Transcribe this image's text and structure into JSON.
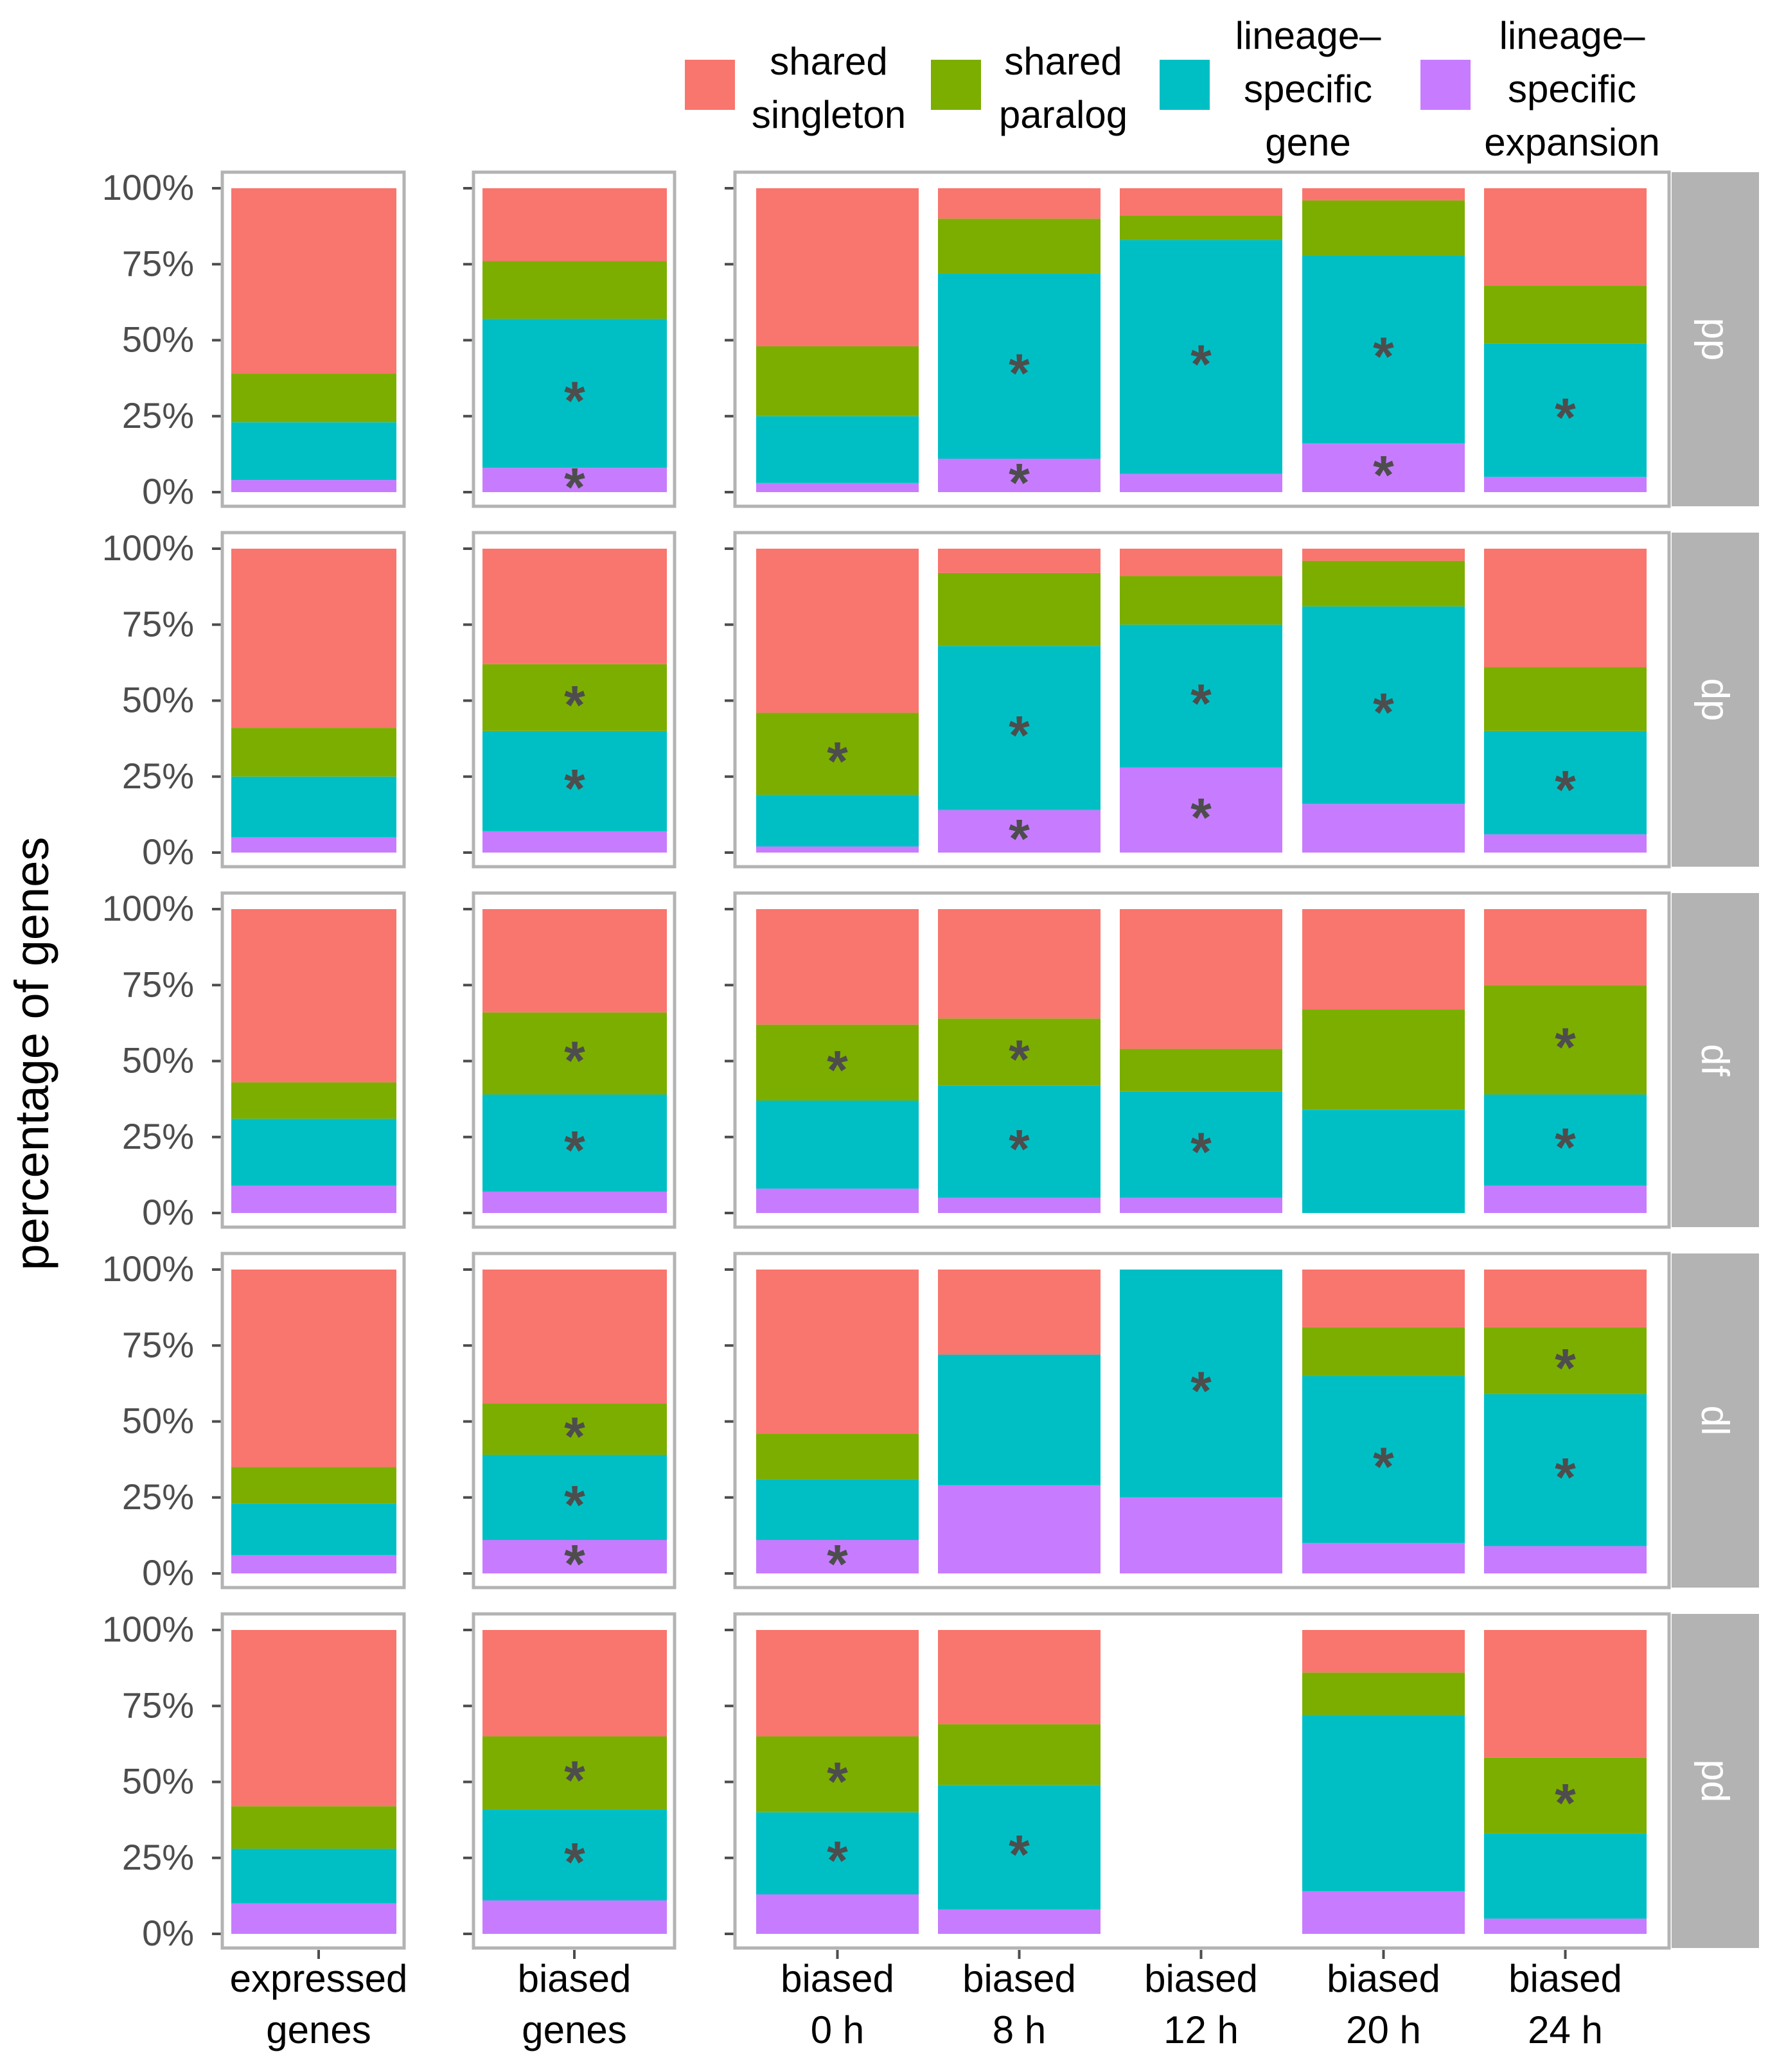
{
  "chart_data": {
    "type": "bar",
    "ylabel": "percentage of genes",
    "xlabel": "",
    "ylim": [
      0,
      100
    ],
    "y_ticks": [
      "0%",
      "25%",
      "50%",
      "75%",
      "100%"
    ],
    "stacking": "stacked-percent",
    "legend": {
      "placement": "top-right",
      "entries": [
        {
          "key": "shared_singleton",
          "lines": [
            "shared",
            "singleton"
          ]
        },
        {
          "key": "shared_paralog",
          "lines": [
            "shared",
            "paralog"
          ]
        },
        {
          "key": "lineage_specific_gene",
          "lines": [
            "lineage–",
            "specific",
            "gene"
          ]
        },
        {
          "key": "lineage_specific_expansion",
          "lines": [
            "lineage–",
            "specific",
            "expansion"
          ]
        }
      ]
    },
    "colors": {
      "shared_singleton": "#F8766D",
      "shared_paralog": "#7CAE00",
      "lineage_specific_gene": "#00BFC4",
      "lineage_specific_expansion": "#C77CFF",
      "strip": "#B3B3B3",
      "asterisk": "#4D4D4D",
      "panel_border": "#B3B3B3",
      "axis_text": "#4D4D4D"
    },
    "stack_order_bottom_to_top": [
      "lineage_specific_expansion",
      "lineage_specific_gene",
      "shared_paralog",
      "shared_singleton"
    ],
    "categories": [
      {
        "key": "expressed",
        "lines": [
          "expressed",
          "genes"
        ]
      },
      {
        "key": "biased",
        "lines": [
          "biased",
          "genes"
        ]
      },
      {
        "key": "b0",
        "lines": [
          "biased",
          "0 h"
        ]
      },
      {
        "key": "b8",
        "lines": [
          "biased",
          "8 h"
        ]
      },
      {
        "key": "b12",
        "lines": [
          "biased",
          "12 h"
        ]
      },
      {
        "key": "b20",
        "lines": [
          "biased",
          "20 h"
        ]
      },
      {
        "key": "b24",
        "lines": [
          "biased",
          "24 h"
        ]
      }
    ],
    "facets": [
      {
        "label": "pp",
        "bars": {
          "expressed": {
            "values": [
              4,
              19,
              16,
              61
            ],
            "stars": []
          },
          "biased": {
            "values": [
              8,
              49,
              19,
              24
            ],
            "stars": [
              "lineage_specific_expansion",
              "lineage_specific_gene"
            ]
          },
          "b0": {
            "values": [
              3,
              22,
              23,
              52
            ],
            "stars": []
          },
          "b8": {
            "values": [
              11,
              61,
              18,
              10
            ],
            "stars": [
              "lineage_specific_expansion",
              "lineage_specific_gene"
            ]
          },
          "b12": {
            "values": [
              6,
              77,
              8,
              9
            ],
            "stars": [
              "lineage_specific_gene"
            ]
          },
          "b20": {
            "values": [
              16,
              62,
              18,
              4
            ],
            "stars": [
              "lineage_specific_expansion",
              "lineage_specific_gene"
            ]
          },
          "b24": {
            "values": [
              5,
              44,
              19,
              32
            ],
            "stars": [
              "lineage_specific_gene"
            ]
          }
        }
      },
      {
        "label": "dp",
        "bars": {
          "expressed": {
            "values": [
              5,
              20,
              16,
              59
            ],
            "stars": []
          },
          "biased": {
            "values": [
              7,
              33,
              22,
              38
            ],
            "stars": [
              "lineage_specific_gene",
              "shared_paralog"
            ]
          },
          "b0": {
            "values": [
              2,
              17,
              27,
              54
            ],
            "stars": [
              "shared_paralog"
            ]
          },
          "b8": {
            "values": [
              14,
              54,
              24,
              8
            ],
            "stars": [
              "lineage_specific_expansion",
              "lineage_specific_gene"
            ]
          },
          "b12": {
            "values": [
              28,
              47,
              16,
              9
            ],
            "stars": [
              "lineage_specific_expansion",
              "lineage_specific_gene"
            ]
          },
          "b20": {
            "values": [
              16,
              65,
              15,
              4
            ],
            "stars": [
              "lineage_specific_gene"
            ]
          },
          "b24": {
            "values": [
              6,
              34,
              21,
              39
            ],
            "stars": [
              "lineage_specific_gene"
            ]
          }
        }
      },
      {
        "label": "df",
        "bars": {
          "expressed": {
            "values": [
              9,
              22,
              12,
              57
            ],
            "stars": []
          },
          "biased": {
            "values": [
              7,
              32,
              27,
              34
            ],
            "stars": [
              "lineage_specific_gene",
              "shared_paralog"
            ]
          },
          "b0": {
            "values": [
              8,
              29,
              25,
              38
            ],
            "stars": [
              "shared_paralog"
            ]
          },
          "b8": {
            "values": [
              5,
              37,
              22,
              36
            ],
            "stars": [
              "lineage_specific_gene",
              "shared_paralog"
            ]
          },
          "b12": {
            "values": [
              5,
              35,
              14,
              46
            ],
            "stars": [
              "lineage_specific_gene"
            ]
          },
          "b20": {
            "values": [
              0,
              34,
              33,
              33
            ],
            "stars": []
          },
          "b24": {
            "values": [
              9,
              30,
              36,
              25
            ],
            "stars": [
              "lineage_specific_gene",
              "shared_paralog"
            ]
          }
        }
      },
      {
        "label": "dl",
        "bars": {
          "expressed": {
            "values": [
              6,
              17,
              12,
              65
            ],
            "stars": []
          },
          "biased": {
            "values": [
              11,
              28,
              17,
              44
            ],
            "stars": [
              "lineage_specific_expansion",
              "lineage_specific_gene",
              "shared_paralog"
            ]
          },
          "b0": {
            "values": [
              11,
              20,
              15,
              54
            ],
            "stars": [
              "lineage_specific_expansion"
            ]
          },
          "b8": {
            "values": [
              29,
              43,
              0,
              28
            ],
            "stars": []
          },
          "b12": {
            "values": [
              25,
              75,
              0,
              0
            ],
            "stars": [
              "lineage_specific_gene"
            ]
          },
          "b20": {
            "values": [
              10,
              55,
              16,
              19
            ],
            "stars": [
              "lineage_specific_gene"
            ]
          },
          "b24": {
            "values": [
              9,
              50,
              22,
              19
            ],
            "stars": [
              "lineage_specific_gene",
              "shared_paralog"
            ]
          }
        }
      },
      {
        "label": "pd",
        "bars": {
          "expressed": {
            "values": [
              10,
              18,
              14,
              58
            ],
            "stars": []
          },
          "biased": {
            "values": [
              11,
              30,
              24,
              35
            ],
            "stars": [
              "lineage_specific_gene",
              "shared_paralog"
            ]
          },
          "b0": {
            "values": [
              13,
              27,
              25,
              35
            ],
            "stars": [
              "lineage_specific_gene",
              "shared_paralog"
            ]
          },
          "b8": {
            "values": [
              8,
              41,
              20,
              31
            ],
            "stars": [
              "lineage_specific_gene"
            ]
          },
          "b12": null,
          "b20": {
            "values": [
              14,
              58,
              14,
              14
            ],
            "stars": []
          },
          "b24": {
            "values": [
              5,
              28,
              25,
              42
            ],
            "stars": [
              "shared_paralog"
            ]
          }
        }
      }
    ]
  }
}
